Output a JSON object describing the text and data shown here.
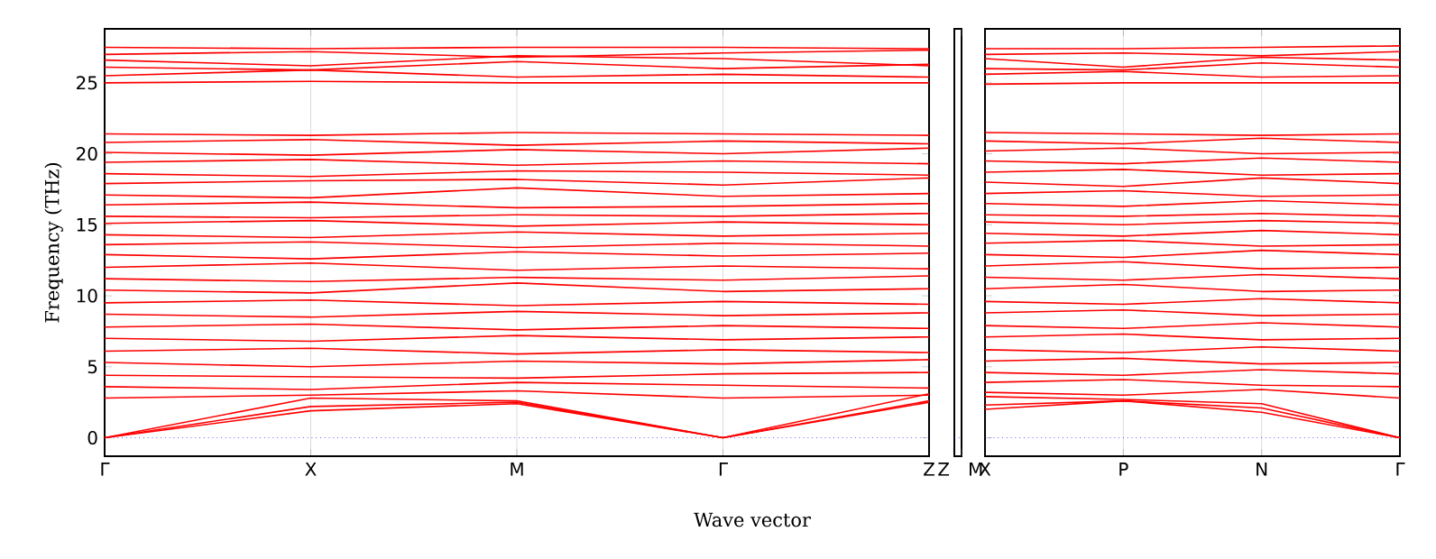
{
  "chart_data": [
    {
      "type": "line",
      "ylabel": "Frequency (THz)",
      "xlabel": "Wave vector",
      "color": "#ff0000",
      "grid": "x",
      "categories": [
        "Γ",
        "X",
        "M",
        "Γ",
        "Z"
      ],
      "ylim": [
        -1.3,
        28.8
      ],
      "yticks": [
        0,
        5,
        10,
        15,
        20,
        25
      ],
      "ref_lines": [
        {
          "axis": "y",
          "value": 0,
          "color": "#0000ff",
          "line_style": "dotted"
        }
      ],
      "series": [
        {
          "values": [
            0,
            1.9,
            2.4,
            0,
            2.5
          ]
        },
        {
          "values": [
            0,
            2.2,
            2.5,
            0,
            2.6
          ]
        },
        {
          "values": [
            0,
            2.8,
            2.6,
            0,
            3.1
          ]
        },
        {
          "values": [
            2.8,
            3.0,
            3.3,
            2.8,
            3.0
          ]
        },
        {
          "values": [
            3.6,
            3.4,
            3.9,
            3.7,
            3.5
          ]
        },
        {
          "values": [
            4.4,
            4.3,
            4.2,
            4.5,
            4.6
          ]
        },
        {
          "values": [
            5.3,
            5.0,
            5.4,
            5.2,
            5.5
          ]
        },
        {
          "values": [
            6.1,
            6.3,
            5.9,
            6.2,
            6.0
          ]
        },
        {
          "values": [
            7.0,
            6.8,
            7.2,
            6.9,
            7.1
          ]
        },
        {
          "values": [
            7.8,
            8.0,
            7.6,
            7.9,
            7.7
          ]
        },
        {
          "values": [
            8.7,
            8.5,
            8.9,
            8.6,
            8.8
          ]
        },
        {
          "values": [
            9.5,
            9.7,
            9.3,
            9.6,
            9.4
          ]
        },
        {
          "values": [
            10.4,
            10.2,
            10.9,
            10.3,
            10.5
          ]
        },
        {
          "values": [
            11.2,
            11.0,
            11.3,
            11.1,
            11.4
          ]
        },
        {
          "values": [
            12.0,
            12.3,
            11.8,
            12.1,
            11.9
          ]
        },
        {
          "values": [
            12.9,
            12.6,
            13.1,
            12.8,
            13.0
          ]
        },
        {
          "values": [
            13.6,
            13.8,
            13.4,
            13.7,
            13.5
          ]
        },
        {
          "values": [
            14.3,
            14.1,
            14.5,
            14.2,
            14.4
          ]
        },
        {
          "values": [
            15.1,
            15.3,
            14.9,
            15.2,
            15.0
          ]
        },
        {
          "values": [
            15.6,
            15.5,
            15.7,
            15.6,
            15.8
          ]
        },
        {
          "values": [
            16.4,
            16.6,
            16.2,
            16.3,
            16.5
          ]
        },
        {
          "values": [
            17.1,
            16.9,
            17.6,
            17.0,
            17.2
          ]
        },
        {
          "values": [
            17.9,
            18.1,
            18.2,
            17.8,
            18.3
          ]
        },
        {
          "values": [
            18.6,
            18.4,
            18.8,
            18.7,
            18.5
          ]
        },
        {
          "values": [
            19.4,
            19.6,
            19.2,
            19.5,
            19.3
          ]
        },
        {
          "values": [
            20.1,
            19.9,
            20.3,
            20.0,
            20.4
          ]
        },
        {
          "values": [
            20.8,
            21.0,
            20.6,
            20.9,
            20.7
          ]
        },
        {
          "values": [
            21.4,
            21.3,
            21.5,
            21.4,
            21.3
          ]
        },
        {
          "values": [
            25.0,
            25.1,
            25.0,
            25.0,
            25.0
          ]
        },
        {
          "values": [
            25.5,
            25.9,
            25.4,
            25.6,
            25.4
          ]
        },
        {
          "values": [
            26.1,
            25.9,
            26.5,
            26.0,
            26.3
          ]
        },
        {
          "values": [
            26.6,
            26.2,
            26.9,
            26.7,
            26.2
          ]
        },
        {
          "values": [
            27.0,
            27.2,
            26.8,
            27.1,
            27.3
          ]
        },
        {
          "values": [
            27.5,
            27.4,
            27.5,
            27.5,
            27.4
          ]
        }
      ]
    },
    {
      "type": "line",
      "tick_labels": "x",
      "categories": [
        "Z",
        "M"
      ],
      "ylim": [
        -1.3,
        28.8
      ],
      "ref_lines": [
        {
          "axis": "y",
          "value": 0,
          "color": "#0000ff",
          "line_style": "dotted"
        }
      ]
    },
    {
      "type": "line",
      "color": "#ff0000",
      "grid": "x",
      "tick_labels": "x",
      "categories": [
        "X",
        "P",
        "N",
        "Γ"
      ],
      "ylim": [
        -1.3,
        28.8
      ],
      "yticks": [
        0,
        5,
        10,
        15,
        20,
        25
      ],
      "ref_lines": [
        {
          "axis": "y",
          "value": 0,
          "color": "#0000ff",
          "line_style": "dotted"
        }
      ],
      "series": [
        {
          "values": [
            2.0,
            2.6,
            1.8,
            0
          ]
        },
        {
          "values": [
            2.3,
            2.6,
            2.1,
            0
          ]
        },
        {
          "values": [
            2.9,
            2.7,
            2.4,
            0
          ]
        },
        {
          "values": [
            3.2,
            3.0,
            3.4,
            2.8
          ]
        },
        {
          "values": [
            3.9,
            4.1,
            3.7,
            3.6
          ]
        },
        {
          "values": [
            4.6,
            4.4,
            4.8,
            4.5
          ]
        },
        {
          "values": [
            5.4,
            5.6,
            5.2,
            5.3
          ]
        },
        {
          "values": [
            6.2,
            6.0,
            6.4,
            6.1
          ]
        },
        {
          "values": [
            7.1,
            7.3,
            6.9,
            7.0
          ]
        },
        {
          "values": [
            7.9,
            7.7,
            8.1,
            7.8
          ]
        },
        {
          "values": [
            8.8,
            9.0,
            8.6,
            8.7
          ]
        },
        {
          "values": [
            9.6,
            9.4,
            9.8,
            9.5
          ]
        },
        {
          "values": [
            10.5,
            10.8,
            10.3,
            10.4
          ]
        },
        {
          "values": [
            11.3,
            11.1,
            11.5,
            11.2
          ]
        },
        {
          "values": [
            12.1,
            12.4,
            11.9,
            12.0
          ]
        },
        {
          "values": [
            12.9,
            12.7,
            13.2,
            12.9
          ]
        },
        {
          "values": [
            13.7,
            13.9,
            13.5,
            13.6
          ]
        },
        {
          "values": [
            14.4,
            14.2,
            14.6,
            14.3
          ]
        },
        {
          "values": [
            15.2,
            15.0,
            15.3,
            15.1
          ]
        },
        {
          "values": [
            15.7,
            15.6,
            15.8,
            15.6
          ]
        },
        {
          "values": [
            16.5,
            16.3,
            16.7,
            16.4
          ]
        },
        {
          "values": [
            17.2,
            17.4,
            17.0,
            17.1
          ]
        },
        {
          "values": [
            18.0,
            17.7,
            18.3,
            17.9
          ]
        },
        {
          "values": [
            18.7,
            18.9,
            18.5,
            18.6
          ]
        },
        {
          "values": [
            19.5,
            19.3,
            19.7,
            19.4
          ]
        },
        {
          "values": [
            20.2,
            20.4,
            20.0,
            20.1
          ]
        },
        {
          "values": [
            20.9,
            20.7,
            21.1,
            20.8
          ]
        },
        {
          "values": [
            21.5,
            21.4,
            21.3,
            21.4
          ]
        },
        {
          "values": [
            24.9,
            25.0,
            25.0,
            25.0
          ]
        },
        {
          "values": [
            25.6,
            25.8,
            25.4,
            25.5
          ]
        },
        {
          "values": [
            26.0,
            25.9,
            26.4,
            26.1
          ]
        },
        {
          "values": [
            26.7,
            26.1,
            26.8,
            26.6
          ]
        },
        {
          "values": [
            27.0,
            27.1,
            26.9,
            27.2
          ]
        },
        {
          "values": [
            27.4,
            27.4,
            27.5,
            27.6
          ]
        }
      ]
    }
  ]
}
